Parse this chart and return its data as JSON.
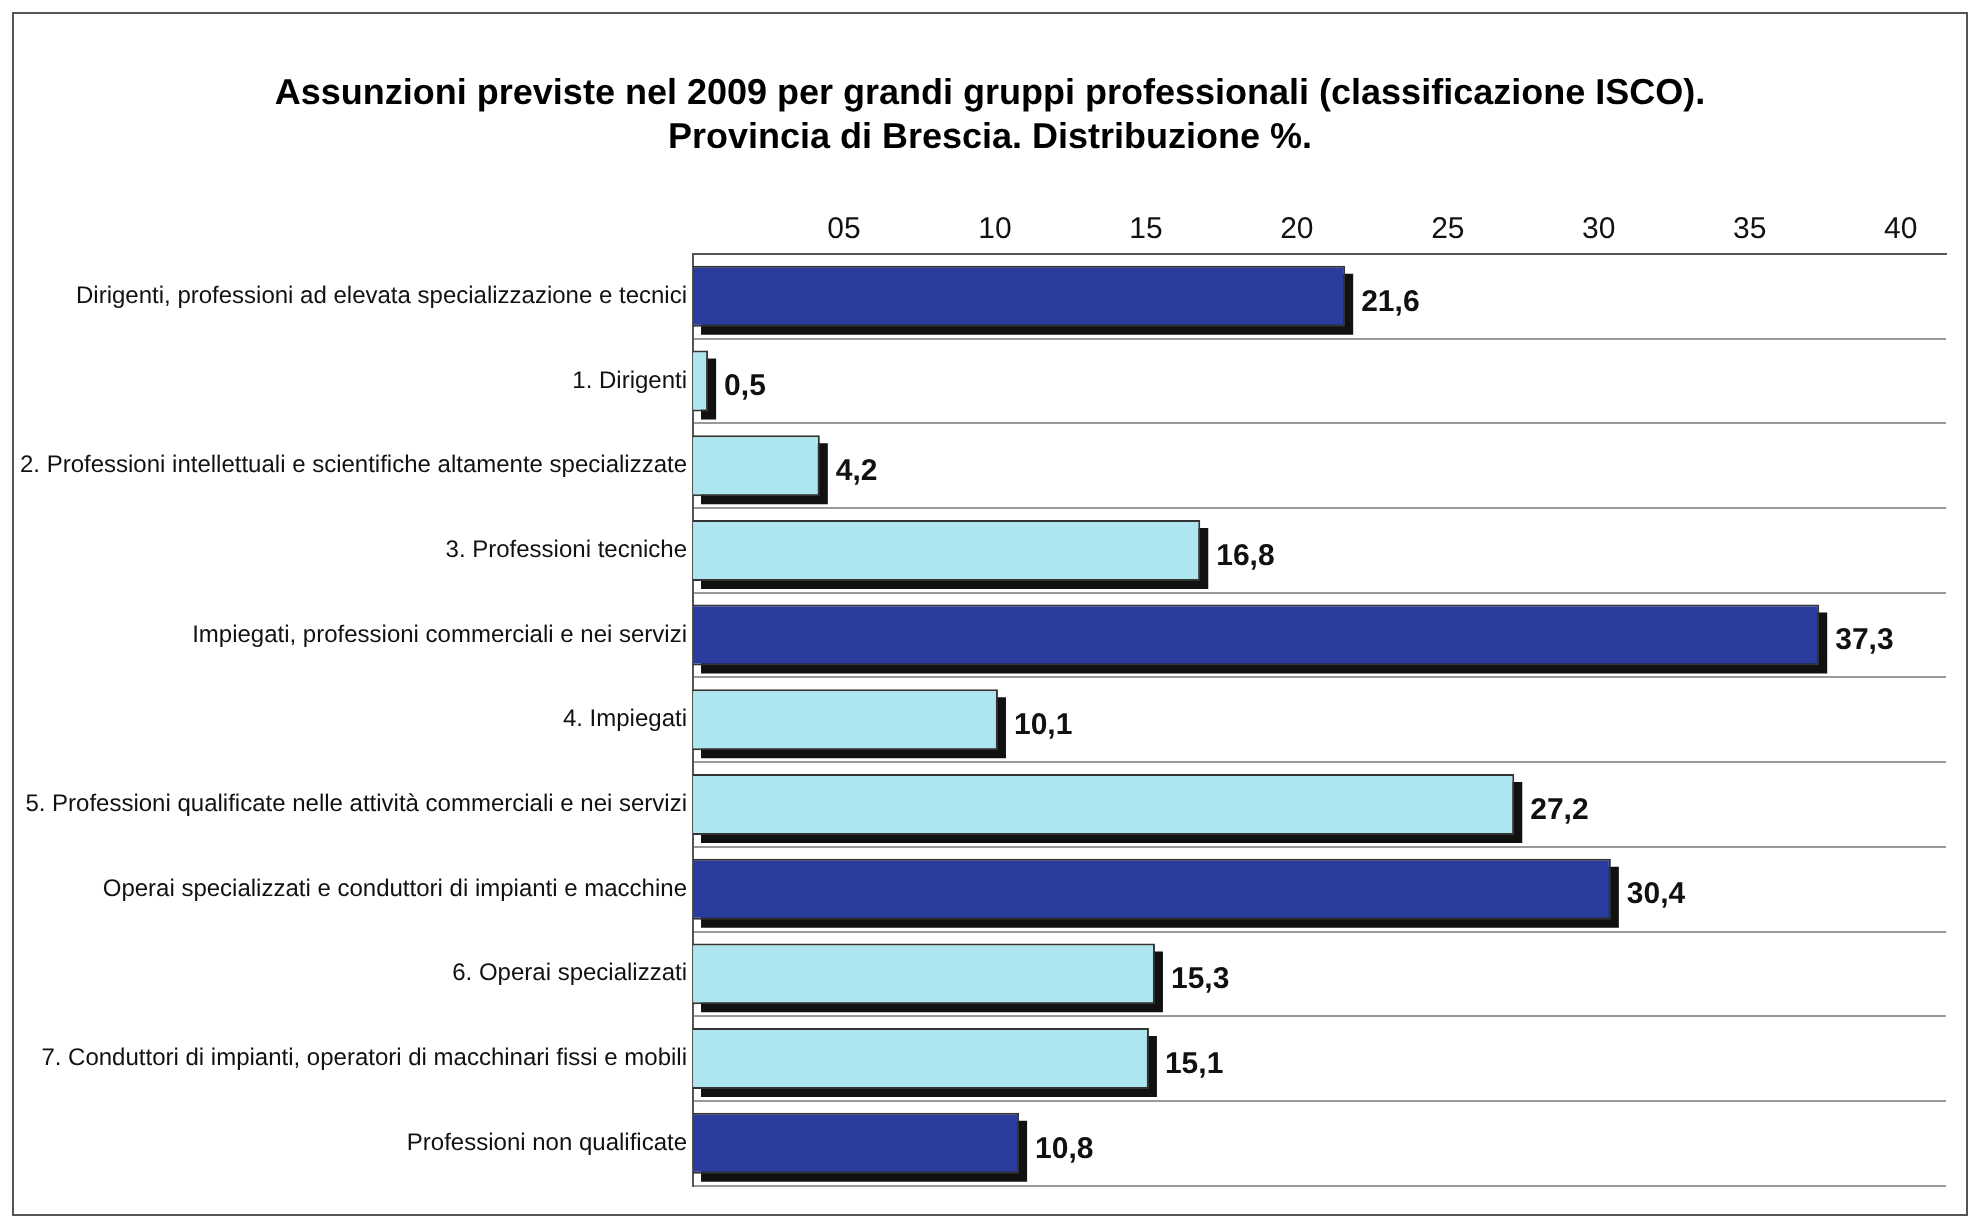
{
  "chart_data": {
    "type": "bar",
    "orientation": "horizontal",
    "title": "Assunzioni previste nel 2009 per grandi gruppi professionali (classificazione ISCO).\nProvincia di Brescia. Distribuzione %.",
    "categories": [
      "Dirigenti, professioni ad elevata specializzazione e tecnici",
      "1. Dirigenti",
      "2. Professioni intellettuali e scientifiche altamente specializzate",
      "3. Professioni tecniche",
      "Impiegati, professioni commerciali e nei servizi",
      "4. Impiegati",
      "5. Professioni qualificate nelle attività commerciali e nei servizi",
      "Operai specializzati e conduttori di impianti e macchine",
      "6. Operai specializzati",
      "7. Conduttori di impianti, operatori di macchinari fissi e mobili",
      "Professioni non qualificate"
    ],
    "values": [
      21.6,
      0.5,
      4.2,
      16.8,
      37.3,
      10.1,
      27.2,
      30.4,
      15.3,
      15.1,
      10.8
    ],
    "value_labels": [
      "21,6",
      "0,5",
      "4,2",
      "16,8",
      "37,3",
      "10,1",
      "27,2",
      "30,4",
      "15,3",
      "15,1",
      "10,8"
    ],
    "colors": [
      "#2a3d9c",
      "#ade6ee",
      "#ade6ee",
      "#ade6ee",
      "#2a3d9c",
      "#ade6ee",
      "#ade6ee",
      "#2a3d9c",
      "#ade6ee",
      "#ade6ee",
      "#2a3d9c"
    ],
    "xlim": [
      0,
      41.5
    ],
    "xticks": [
      {
        "value": 5,
        "label": "05"
      },
      10,
      15,
      20,
      25,
      30,
      35,
      40
    ],
    "grid": "y",
    "legend": false
  }
}
